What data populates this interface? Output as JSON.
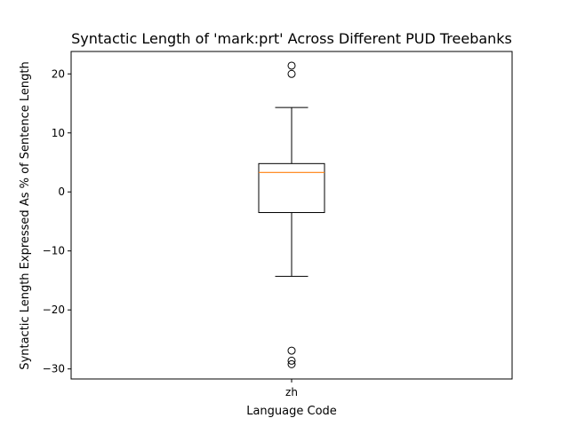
{
  "chart_data": {
    "type": "box",
    "title": "Syntactic Length of 'mark:prt' Across Different PUD Treebanks",
    "xlabel": "Language Code",
    "ylabel": "Syntactic Length Expressed As % of Sentence Length",
    "categories": [
      "zh"
    ],
    "ylim": [
      -31.7,
      23.8
    ],
    "yticks": [
      -30,
      -20,
      -10,
      0,
      10,
      20
    ],
    "ytick_labels": [
      "−30",
      "−20",
      "−10",
      "0",
      "10",
      "20"
    ],
    "grid": false,
    "boxes": [
      {
        "category": "zh",
        "whisker_low": -14.3,
        "q1": -3.5,
        "median": 3.3,
        "q3": 4.8,
        "whisker_high": 14.3,
        "outliers": [
          21.4,
          20.0,
          -26.9,
          -28.6,
          -29.2
        ]
      }
    ],
    "colors": {
      "box": "#000000",
      "median": "#ff7f0e",
      "outlier": "#000000"
    }
  }
}
